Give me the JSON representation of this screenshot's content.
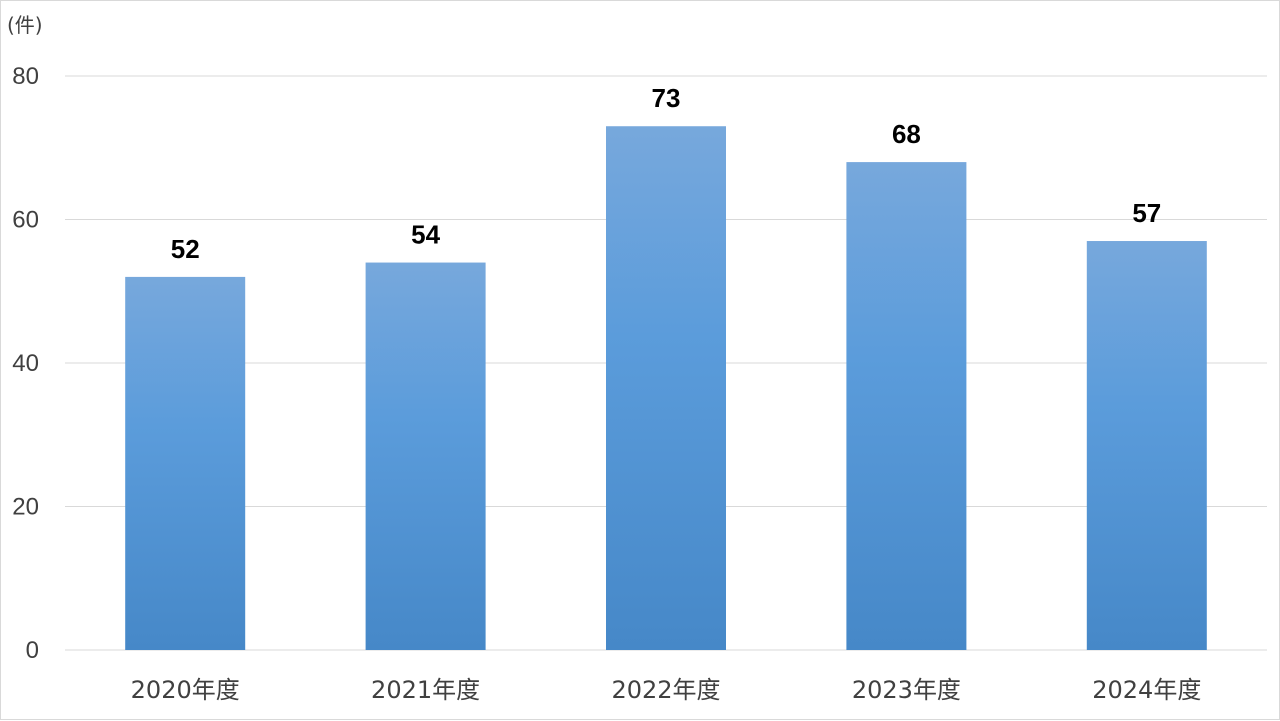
{
  "chart_data": {
    "type": "bar",
    "unit_label": "(件)",
    "categories": [
      "2020年度",
      "2021年度",
      "2022年度",
      "2023年度",
      "2024年度"
    ],
    "values": [
      52,
      54,
      73,
      68,
      57
    ],
    "data_labels": [
      "52",
      "54",
      "73",
      "68",
      "57"
    ],
    "y_ticks": [
      "0",
      "20",
      "40",
      "60",
      "80"
    ],
    "ylim": [
      0,
      80
    ],
    "grid": true,
    "legend": "none",
    "bar_color_top": "#77a8dc",
    "bar_color_mid": "#5b9cdb",
    "bar_color_bottom": "#4688c8"
  }
}
